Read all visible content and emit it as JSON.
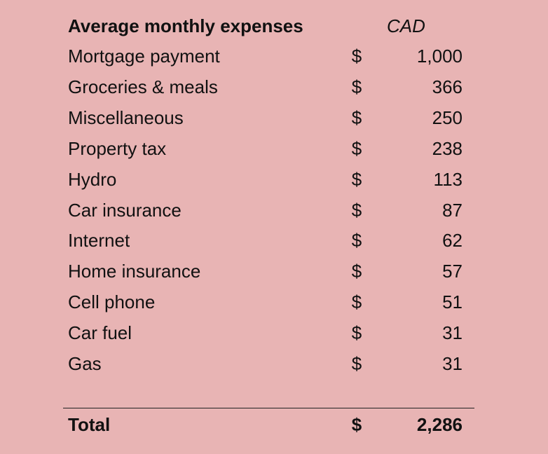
{
  "chart_data": {
    "type": "table",
    "title": "Average monthly expenses",
    "currency": "CAD",
    "currency_symbol": "$",
    "rows": [
      {
        "label": "Mortgage payment",
        "value": 1000,
        "display": "1,000"
      },
      {
        "label": "Groceries & meals",
        "value": 366,
        "display": "366"
      },
      {
        "label": "Miscellaneous",
        "value": 250,
        "display": "250"
      },
      {
        "label": "Property tax",
        "value": 238,
        "display": "238"
      },
      {
        "label": "Hydro",
        "value": 113,
        "display": "113"
      },
      {
        "label": "Car insurance",
        "value": 87,
        "display": "87"
      },
      {
        "label": "Internet",
        "value": 62,
        "display": "62"
      },
      {
        "label": "Home insurance",
        "value": 57,
        "display": "57"
      },
      {
        "label": "Cell phone",
        "value": 51,
        "display": "51"
      },
      {
        "label": "Car fuel",
        "value": 31,
        "display": "31"
      },
      {
        "label": "Gas",
        "value": 31,
        "display": "31"
      }
    ],
    "total": {
      "label": "Total",
      "value": 2286,
      "display": "2,286"
    }
  },
  "colors": {
    "background": "#e8b4b4",
    "text": "#111111",
    "divider": "#222222"
  }
}
